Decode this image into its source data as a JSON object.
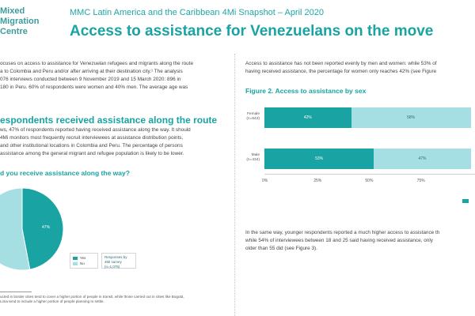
{
  "logo": {
    "line1": "Mixed",
    "line2": "Migration",
    "line3": "Centre"
  },
  "header": {
    "snapshot": "MMC Latin America and the Caribbean 4Mi Snapshot – April 2020",
    "title": "Access to assistance for Venezuelans on the move"
  },
  "left": {
    "intro_lines": [
      "ocuses on access to assistance for Venezuelan refugees and migrants along the route",
      "a to Colombia and Peru and/or after arriving at their destination city.¹ The analysis",
      "076 interviews conducted between 9 November 2019 and 15 March 2020: 896 in",
      "180 in Peru. 60% of respondents were women and 40% men. The average age was"
    ],
    "section_heading": "espondents received assistance along the route",
    "section_lines": [
      "ws, 47% of respondents reported having received assistance along the way. It should",
      "4Mi monitors most frequently recruit interviewees at assistance distribution points,",
      "and other institutional locations in Colombia and Peru. The percentage of persons",
      "assistance among the general migrant and refugee population is likely to be lower."
    ],
    "figure_question": "d you receive assistance along the way?",
    "footnote_lines": [
      "ucted in border cities tend to cover a higher portion of people in transit, while those carried out in cities like Bogotá,",
      "Lima tend to include a higher portion of people planning to settle."
    ]
  },
  "right": {
    "intro_lines": [
      "Access to assistance has not been reported evenly by men and women: while 53% of",
      "having received assistance, the percentage for women only reaches 42% (see Figure"
    ],
    "figure_title": "Figure 2. Access to assistance by sex",
    "after_lines": [
      "In the same way, younger respondents reported a much higher access to assistance th",
      "while 54% of interviewees between 18 and 25 said having received assistance, only",
      "older than 55 did (see Figure 3)."
    ]
  },
  "colors": {
    "yes": "#1aa3a3",
    "no": "#a6dfe3",
    "accent": "#1aa3a3"
  },
  "chart_data": [
    {
      "type": "pie",
      "title": "d you receive assistance along the way?",
      "labels": [
        "Yes",
        "No"
      ],
      "values": [
        47,
        53
      ],
      "data_labels": [
        "47%",
        ""
      ],
      "legend": [
        "Yes",
        "No"
      ],
      "annotation": "Responses by 4Mi survey (n=1,076)"
    },
    {
      "type": "bar",
      "orientation": "horizontal-stacked",
      "title": "Figure 2. Access to assistance by sex",
      "categories": [
        "Female (n=642)",
        "Male (n=434)"
      ],
      "series": [
        {
          "name": "Yes",
          "values": [
            42,
            53
          ],
          "labels": [
            "42%",
            "53%"
          ]
        },
        {
          "name": "No",
          "values": [
            58,
            47
          ],
          "labels": [
            "58%",
            "47%"
          ]
        }
      ],
      "x_ticks": [
        "0%",
        "25%",
        "50%",
        "75%"
      ],
      "xlim": [
        0,
        100
      ]
    }
  ]
}
